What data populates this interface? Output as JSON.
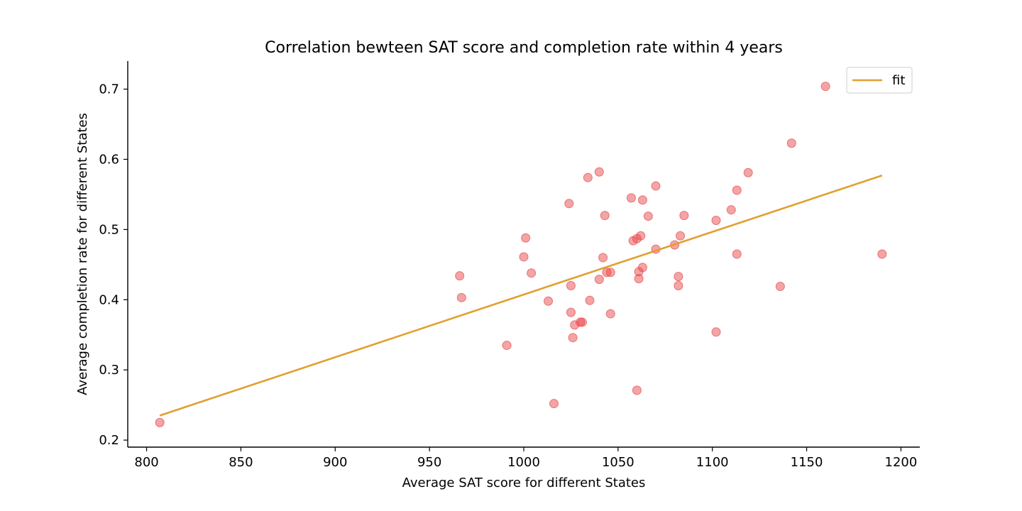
{
  "chart_data": {
    "type": "scatter",
    "title": "Correlation bewteen SAT score and completion rate within 4 years",
    "xlabel": "Average SAT score for different States",
    "ylabel": "Average completion rate for different States",
    "xlim": [
      790,
      1210
    ],
    "ylim": [
      0.19,
      0.74
    ],
    "xticks": [
      800,
      850,
      900,
      950,
      1000,
      1050,
      1100,
      1150,
      1200
    ],
    "yticks": [
      0.2,
      0.3,
      0.4,
      0.5,
      0.6,
      0.7
    ],
    "grid": false,
    "legend": {
      "position": "top-right",
      "entries": [
        "fit"
      ]
    },
    "series": [
      {
        "kind": "scatter",
        "color": "#e8494b",
        "points": [
          [
            807,
            0.225
          ],
          [
            966,
            0.434
          ],
          [
            967,
            0.403
          ],
          [
            991,
            0.335
          ],
          [
            1000,
            0.461
          ],
          [
            1001,
            0.488
          ],
          [
            1004,
            0.438
          ],
          [
            1013,
            0.398
          ],
          [
            1016,
            0.252
          ],
          [
            1024,
            0.537
          ],
          [
            1025,
            0.382
          ],
          [
            1025,
            0.42
          ],
          [
            1026,
            0.346
          ],
          [
            1027,
            0.364
          ],
          [
            1030,
            0.368
          ],
          [
            1031,
            0.368
          ],
          [
            1034,
            0.574
          ],
          [
            1035,
            0.399
          ],
          [
            1040,
            0.582
          ],
          [
            1040,
            0.429
          ],
          [
            1042,
            0.46
          ],
          [
            1043,
            0.52
          ],
          [
            1044,
            0.439
          ],
          [
            1046,
            0.439
          ],
          [
            1046,
            0.38
          ],
          [
            1057,
            0.545
          ],
          [
            1058,
            0.484
          ],
          [
            1060,
            0.487
          ],
          [
            1060,
            0.271
          ],
          [
            1061,
            0.44
          ],
          [
            1061,
            0.43
          ],
          [
            1062,
            0.491
          ],
          [
            1063,
            0.446
          ],
          [
            1063,
            0.542
          ],
          [
            1066,
            0.519
          ],
          [
            1070,
            0.562
          ],
          [
            1070,
            0.472
          ],
          [
            1080,
            0.478
          ],
          [
            1082,
            0.433
          ],
          [
            1082,
            0.42
          ],
          [
            1083,
            0.491
          ],
          [
            1085,
            0.52
          ],
          [
            1102,
            0.513
          ],
          [
            1102,
            0.354
          ],
          [
            1110,
            0.528
          ],
          [
            1113,
            0.556
          ],
          [
            1113,
            0.465
          ],
          [
            1119,
            0.581
          ],
          [
            1136,
            0.419
          ],
          [
            1142,
            0.623
          ],
          [
            1160,
            0.704
          ],
          [
            1190,
            0.465
          ]
        ]
      },
      {
        "kind": "line",
        "name": "fit",
        "color": "#e0a030",
        "points": [
          [
            807,
            0.235
          ],
          [
            1190,
            0.577
          ]
        ]
      }
    ]
  }
}
